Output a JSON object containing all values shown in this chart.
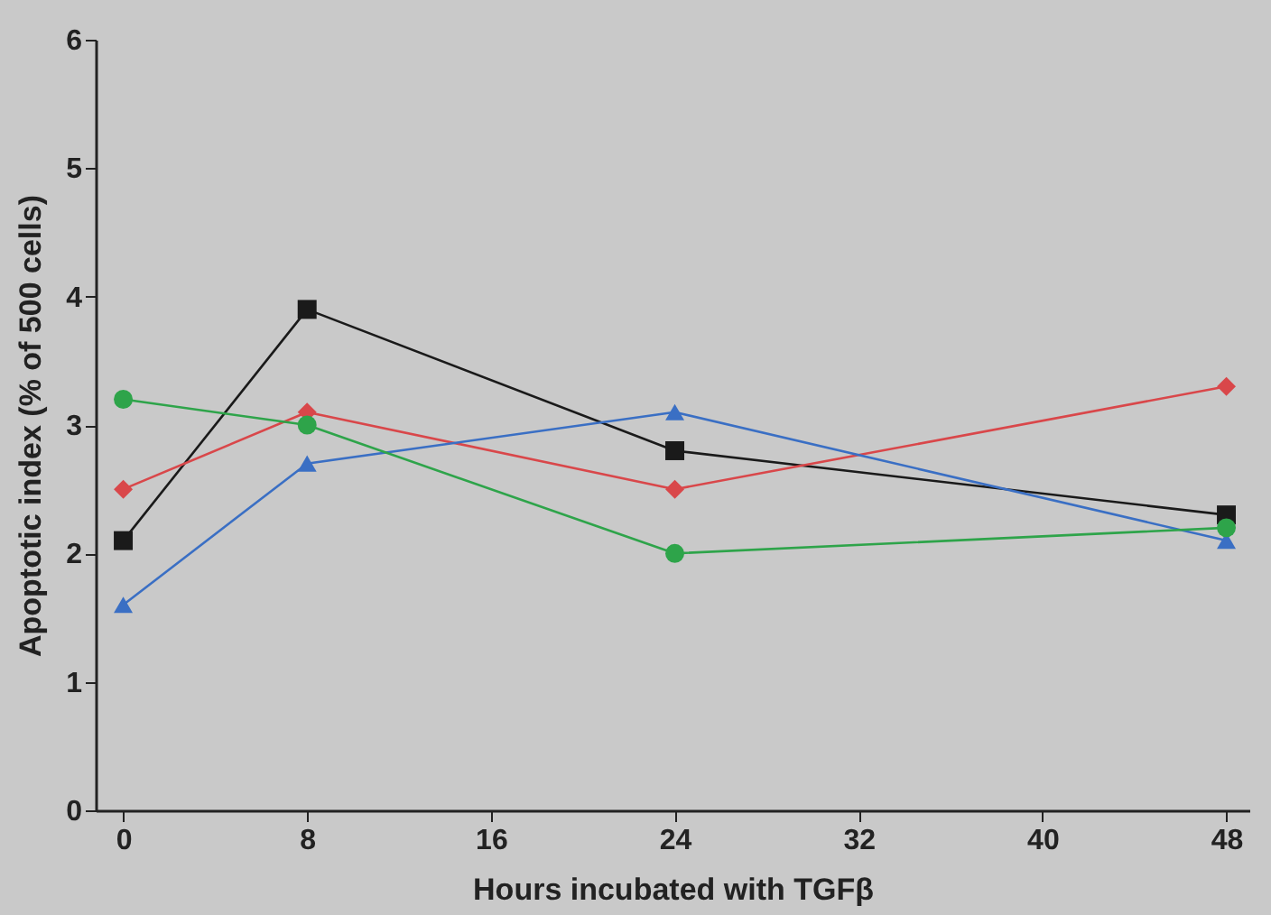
{
  "chart_data": {
    "type": "line",
    "xlabel": "Hours incubated with TGFβ",
    "ylabel": "Apoptotic index (% of 500 cells)",
    "x": [
      0,
      8,
      24,
      48
    ],
    "xlim": [
      -1.2,
      49
    ],
    "xticks": [
      0,
      8,
      16,
      24,
      32,
      40,
      48
    ],
    "ylim": [
      0,
      6
    ],
    "yticks": [
      0,
      1,
      2,
      3,
      4,
      5,
      6
    ],
    "grid": false,
    "line_style": "solid",
    "series": [
      {
        "color": "#1a1a1a",
        "marker": "square",
        "values": [
          2.1,
          3.9,
          2.8,
          2.3
        ]
      },
      {
        "color": "#d9474a",
        "marker": "diamond",
        "values": [
          2.5,
          3.1,
          2.5,
          3.3
        ]
      },
      {
        "color": "#3a6fc4",
        "marker": "triangle",
        "values": [
          1.6,
          2.7,
          3.1,
          2.1
        ]
      },
      {
        "color": "#2ea44a",
        "marker": "circle",
        "values": [
          3.2,
          3.0,
          2.0,
          2.2
        ]
      }
    ]
  }
}
